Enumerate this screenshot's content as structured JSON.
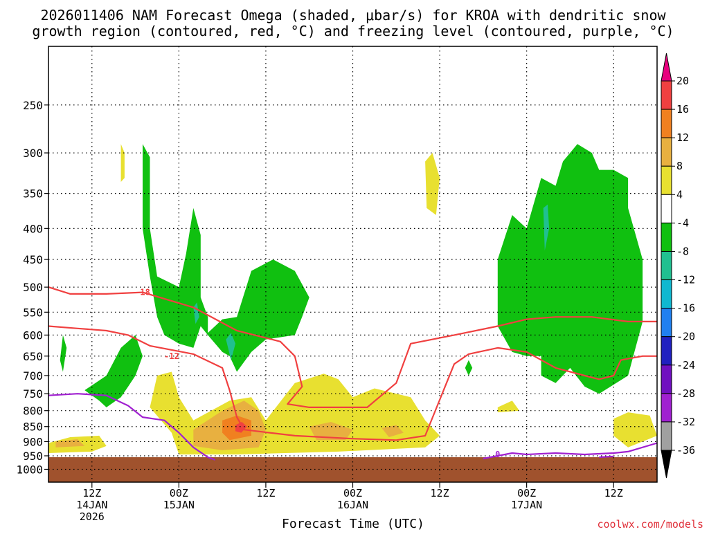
{
  "title": {
    "line1": "2026011406 NAM Forecast Omega (shaded, μbar/s) for KROA with dendritic snow",
    "line2": "growth region (contoured, red, °C) and freezing level (contoured, purple, °C)"
  },
  "credit": "coolwx.com/models",
  "chart_data": {
    "type": "heatmap",
    "title": "2026011406 NAM Forecast Omega (shaded, μbar/s) for KROA with dendritic snow growth region (contoured, red, °C) and freezing level (contoured, purple, °C)",
    "xlabel": "Forecast Time (UTC)",
    "ylabel": "",
    "x_unit": "hours since 2026-01-14 06Z",
    "xlim": [
      0,
      84
    ],
    "y_scale": "log-pressure",
    "ylim_hPa": [
      1050,
      200
    ],
    "y_ticks": [
      250,
      300,
      350,
      400,
      450,
      500,
      550,
      600,
      650,
      700,
      750,
      800,
      850,
      900,
      950,
      1000
    ],
    "x_ticks": [
      {
        "hour": 6,
        "l1": "12Z",
        "l2": "14JAN",
        "l3": "2026"
      },
      {
        "hour": 18,
        "l1": "00Z",
        "l2": "15JAN",
        "l3": ""
      },
      {
        "hour": 30,
        "l1": "12Z",
        "l2": "",
        "l3": ""
      },
      {
        "hour": 42,
        "l1": "00Z",
        "l2": "16JAN",
        "l3": ""
      },
      {
        "hour": 54,
        "l1": "12Z",
        "l2": "",
        "l3": ""
      },
      {
        "hour": 66,
        "l1": "00Z",
        "l2": "17JAN",
        "l3": ""
      },
      {
        "hour": 78,
        "l1": "12Z",
        "l2": "",
        "l3": ""
      }
    ],
    "grid": true,
    "colorbar": {
      "levels": [
        20,
        16,
        12,
        8,
        4,
        -4,
        -8,
        -12,
        -16,
        -20,
        -24,
        -28,
        -32,
        -36
      ],
      "colors": [
        "#e8007e",
        "#f04040",
        "#f08020",
        "#e8b040",
        "#e8e030",
        "#ffffff",
        "#10c010",
        "#20c090",
        "#10b8d0",
        "#2080f0",
        "#2020c0",
        "#7010c0",
        "#a020d0",
        "#a0a0a0",
        "#000000"
      ]
    },
    "terrain": {
      "color": "#a0522d",
      "pressure_hPa": 955
    },
    "shaded_regions": [
      {
        "value": "4 to 8",
        "color": "#e8e030",
        "points": [
          [
            0,
            905
          ],
          [
            3,
            885
          ],
          [
            7,
            880
          ],
          [
            8,
            915
          ],
          [
            6,
            935
          ],
          [
            0,
            940
          ]
        ]
      },
      {
        "value": "8 to 12",
        "color": "#e8b040",
        "points": [
          [
            1,
            900
          ],
          [
            4,
            892
          ],
          [
            5,
            915
          ],
          [
            1,
            920
          ]
        ]
      },
      {
        "value": "4 to 8",
        "color": "#e8e030",
        "points": [
          [
            15,
            700
          ],
          [
            17,
            690
          ],
          [
            18,
            760
          ],
          [
            20,
            830
          ],
          [
            25,
            770
          ],
          [
            28,
            760
          ],
          [
            30,
            830
          ],
          [
            34,
            720
          ],
          [
            38,
            695
          ],
          [
            40,
            710
          ],
          [
            42,
            760
          ],
          [
            45,
            735
          ],
          [
            50,
            760
          ],
          [
            52,
            830
          ],
          [
            54,
            880
          ],
          [
            52,
            920
          ],
          [
            40,
            935
          ],
          [
            26,
            945
          ],
          [
            18,
            945
          ],
          [
            17,
            870
          ],
          [
            14,
            790
          ]
        ]
      },
      {
        "value": "8 to 12",
        "color": "#e8b040",
        "points": [
          [
            20,
            860
          ],
          [
            24,
            800
          ],
          [
            27,
            770
          ],
          [
            29,
            800
          ],
          [
            30,
            860
          ],
          [
            29,
            920
          ],
          [
            24,
            930
          ],
          [
            20,
            915
          ]
        ]
      },
      {
        "value": "8 to 12",
        "color": "#e8b040",
        "points": [
          [
            36,
            850
          ],
          [
            39,
            835
          ],
          [
            42,
            860
          ],
          [
            41,
            895
          ],
          [
            37,
            895
          ]
        ]
      },
      {
        "value": "8 to 12",
        "color": "#e8b040",
        "points": [
          [
            46,
            855
          ],
          [
            48,
            845
          ],
          [
            49,
            870
          ],
          [
            47,
            885
          ]
        ]
      },
      {
        "value": "12 to 16",
        "color": "#f08020",
        "points": [
          [
            24,
            830
          ],
          [
            26,
            815
          ],
          [
            28,
            830
          ],
          [
            28,
            880
          ],
          [
            25,
            895
          ],
          [
            24,
            870
          ]
        ]
      },
      {
        "value": "16 to 20",
        "color": "#f04040",
        "points": [
          [
            25.8,
            845
          ],
          [
            26.7,
            835
          ],
          [
            27.4,
            850
          ],
          [
            26.6,
            870
          ],
          [
            25.8,
            865
          ]
        ]
      },
      {
        "value": "4 to 8",
        "color": "#e8e030",
        "points": [
          [
            52,
            310
          ],
          [
            53,
            300
          ],
          [
            54,
            330
          ],
          [
            53.5,
            380
          ],
          [
            52.2,
            370
          ]
        ]
      },
      {
        "value": "4 to 8",
        "color": "#e8e030",
        "points": [
          [
            10,
            290
          ],
          [
            10.5,
            300
          ],
          [
            10.5,
            330
          ],
          [
            10,
            335
          ]
        ]
      },
      {
        "value": "4 to 8",
        "color": "#e8e030",
        "points": [
          [
            62,
            790
          ],
          [
            64,
            770
          ],
          [
            65,
            800
          ],
          [
            62,
            805
          ]
        ]
      },
      {
        "value": "4 to 8",
        "color": "#e8e030",
        "points": [
          [
            78,
            825
          ],
          [
            80,
            805
          ],
          [
            83,
            815
          ],
          [
            84,
            880
          ],
          [
            80,
            920
          ],
          [
            78,
            880
          ]
        ]
      },
      {
        "value": "-8 to -4",
        "color": "#10c010",
        "points": [
          [
            13,
            290
          ],
          [
            14,
            305
          ],
          [
            14,
            400
          ],
          [
            15,
            480
          ],
          [
            18,
            500
          ],
          [
            19,
            440
          ],
          [
            20,
            370
          ],
          [
            21,
            410
          ],
          [
            21,
            520
          ],
          [
            22,
            560
          ],
          [
            22,
            595
          ],
          [
            24,
            565
          ],
          [
            26,
            560
          ],
          [
            28,
            470
          ],
          [
            31,
            450
          ],
          [
            34,
            470
          ],
          [
            36,
            520
          ],
          [
            35,
            560
          ],
          [
            34,
            600
          ],
          [
            30,
            610
          ],
          [
            28,
            640
          ],
          [
            26,
            690
          ],
          [
            25,
            650
          ],
          [
            24,
            640
          ],
          [
            22,
            600
          ],
          [
            21,
            580
          ],
          [
            20,
            630
          ],
          [
            18,
            620
          ],
          [
            16,
            600
          ],
          [
            15,
            560
          ],
          [
            14,
            480
          ],
          [
            13,
            400
          ]
        ]
      },
      {
        "value": "-8 to -4",
        "color": "#10c010",
        "points": [
          [
            5,
            740
          ],
          [
            8,
            700
          ],
          [
            10,
            630
          ],
          [
            12,
            600
          ],
          [
            13,
            650
          ],
          [
            12,
            700
          ],
          [
            11,
            730
          ],
          [
            10,
            760
          ],
          [
            8,
            790
          ],
          [
            7,
            770
          ]
        ]
      },
      {
        "value": "-8 to -4",
        "color": "#10c010",
        "points": [
          [
            2,
            600
          ],
          [
            2.5,
            630
          ],
          [
            2,
            690
          ],
          [
            1.6,
            660
          ]
        ]
      },
      {
        "value": "-8 to -4",
        "color": "#10c010",
        "points": [
          [
            62,
            450
          ],
          [
            64,
            380
          ],
          [
            66,
            400
          ],
          [
            68,
            330
          ],
          [
            70,
            340
          ],
          [
            71,
            310
          ],
          [
            73,
            290
          ],
          [
            75,
            300
          ],
          [
            76,
            320
          ],
          [
            78,
            320
          ],
          [
            80,
            330
          ],
          [
            80,
            370
          ],
          [
            82,
            450
          ],
          [
            82,
            570
          ],
          [
            80,
            700
          ],
          [
            76,
            750
          ],
          [
            74,
            730
          ],
          [
            72,
            680
          ],
          [
            70,
            720
          ],
          [
            68,
            700
          ],
          [
            68,
            650
          ],
          [
            66,
            650
          ],
          [
            64,
            640
          ],
          [
            62,
            580
          ]
        ]
      },
      {
        "value": "-8 to -4",
        "color": "#10c010",
        "points": [
          [
            58,
            660
          ],
          [
            58.5,
            680
          ],
          [
            58,
            700
          ],
          [
            57.5,
            680
          ]
        ]
      },
      {
        "value": "-12 to -8",
        "color": "#20c090",
        "points": [
          [
            24.5,
            610
          ],
          [
            25.2,
            595
          ],
          [
            25.8,
            620
          ],
          [
            25.2,
            660
          ]
        ]
      },
      {
        "value": "-12 to -8",
        "color": "#20c090",
        "points": [
          [
            68.3,
            370
          ],
          [
            68.9,
            365
          ],
          [
            69.1,
            400
          ],
          [
            68.5,
            435
          ]
        ]
      },
      {
        "value": "-12 to -8",
        "color": "#20c090",
        "points": [
          [
            20,
            540
          ],
          [
            20.5,
            530
          ],
          [
            20.8,
            560
          ],
          [
            20.3,
            575
          ]
        ]
      }
    ],
    "contours": [
      {
        "name": "",
        "color": "#f04040",
        "label": "-18",
        "label_at": [
          13,
          510
        ],
        "points": [
          [
            0,
            500
          ],
          [
            3,
            513
          ],
          [
            8,
            513
          ],
          [
            13,
            510
          ],
          [
            20,
            540
          ],
          [
            26,
            590
          ],
          [
            32,
            615
          ],
          [
            34,
            650
          ],
          [
            35,
            730
          ],
          [
            33,
            780
          ],
          [
            36,
            790
          ],
          [
            44,
            790
          ],
          [
            48,
            720
          ],
          [
            50,
            620
          ],
          [
            56,
            600
          ],
          [
            62,
            580
          ],
          [
            66,
            565
          ],
          [
            70,
            560
          ],
          [
            75,
            560
          ],
          [
            80,
            570
          ],
          [
            84,
            570
          ]
        ]
      },
      {
        "name": "",
        "color": "#f04040",
        "label": "-12",
        "label_at": [
          17,
          650
        ],
        "points": [
          [
            0,
            580
          ],
          [
            4,
            585
          ],
          [
            8,
            590
          ],
          [
            11,
            600
          ],
          [
            14,
            625
          ],
          [
            20,
            645
          ],
          [
            24,
            680
          ],
          [
            25,
            740
          ],
          [
            26,
            820
          ],
          [
            27,
            860
          ],
          [
            34,
            880
          ],
          [
            42,
            890
          ],
          [
            48,
            895
          ],
          [
            52,
            880
          ],
          [
            56,
            670
          ],
          [
            58,
            645
          ],
          [
            62,
            630
          ],
          [
            66,
            640
          ],
          [
            70,
            680
          ],
          [
            74,
            700
          ],
          [
            76,
            710
          ],
          [
            78,
            700
          ],
          [
            79,
            660
          ],
          [
            82,
            650
          ],
          [
            84,
            650
          ]
        ]
      },
      {
        "name": "",
        "color": "#a020d0",
        "label": "0",
        "label_at": [
          62,
          945
        ],
        "points": [
          [
            0,
            755
          ],
          [
            4,
            750
          ],
          [
            8,
            755
          ],
          [
            11,
            785
          ],
          [
            13,
            820
          ],
          [
            16,
            830
          ],
          [
            18,
            870
          ],
          [
            20,
            920
          ],
          [
            22,
            955
          ],
          [
            23,
            965
          ]
        ]
      },
      {
        "name": "",
        "color": "#a020d0",
        "label": "",
        "label_at": null,
        "points": [
          [
            60,
            960
          ],
          [
            64,
            940
          ],
          [
            66,
            945
          ],
          [
            70,
            940
          ],
          [
            74,
            945
          ],
          [
            78,
            940
          ],
          [
            80,
            935
          ],
          [
            84,
            905
          ]
        ]
      },
      {
        "name": "",
        "color": "#a020d0",
        "label": "",
        "label_at": null,
        "points": [
          [
            76,
            955
          ],
          [
            78,
            952
          ]
        ]
      }
    ]
  }
}
